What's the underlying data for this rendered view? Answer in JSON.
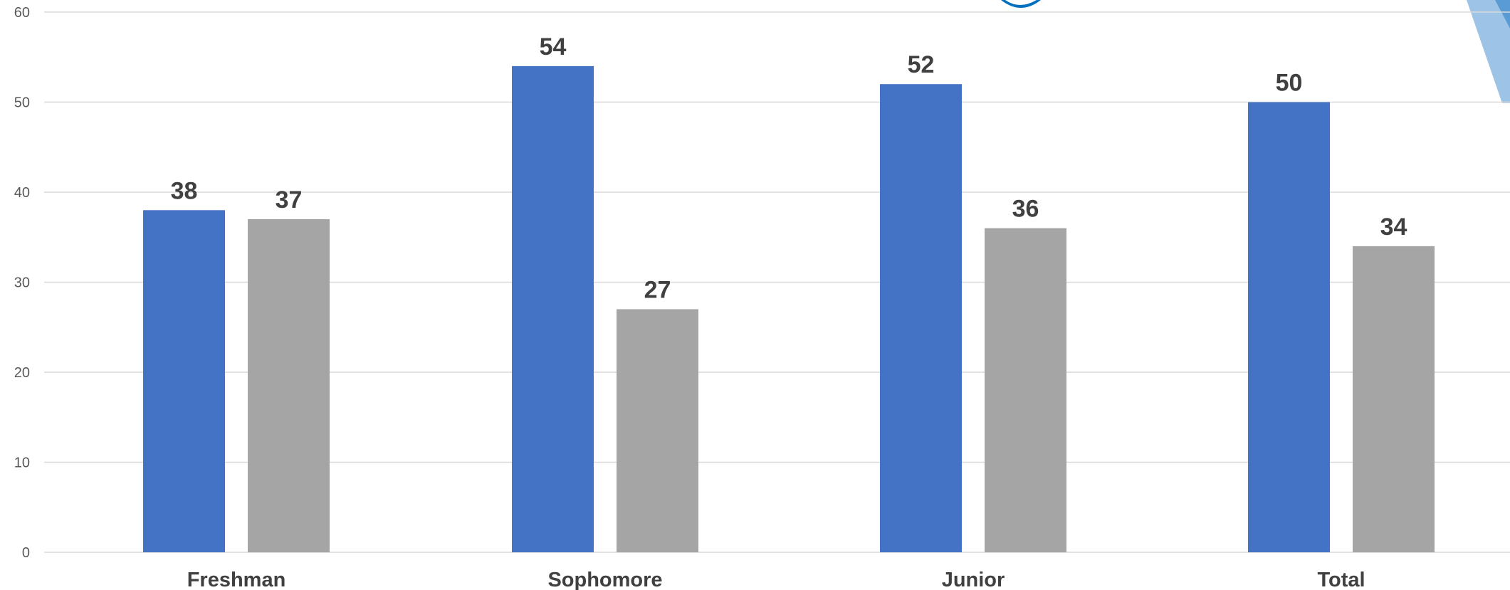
{
  "chart_data": {
    "type": "bar",
    "categories": [
      "Freshman",
      "Sophomore",
      "Junior",
      "Total"
    ],
    "series": [
      {
        "values": [
          38,
          54,
          52,
          50
        ],
        "data_labels": [
          "38",
          "54",
          "52",
          "50"
        ],
        "color": "#4472C4"
      },
      {
        "values": [
          37,
          27,
          36,
          34
        ],
        "data_labels": [
          "37",
          "27",
          "36",
          "34"
        ],
        "color": "#A5A5A5"
      }
    ],
    "yticks": [
      "0",
      "10",
      "20",
      "30",
      "40",
      "50",
      "60"
    ],
    "ylim": [
      0,
      60
    ],
    "grid": true,
    "legend": "none",
    "title": "",
    "xlabel": "",
    "ylabel": ""
  },
  "decoration": {
    "corner_shape_colors": [
      "#9DC3E6",
      "#5B9BD5"
    ],
    "title_fragment_color": "#0070C0"
  }
}
